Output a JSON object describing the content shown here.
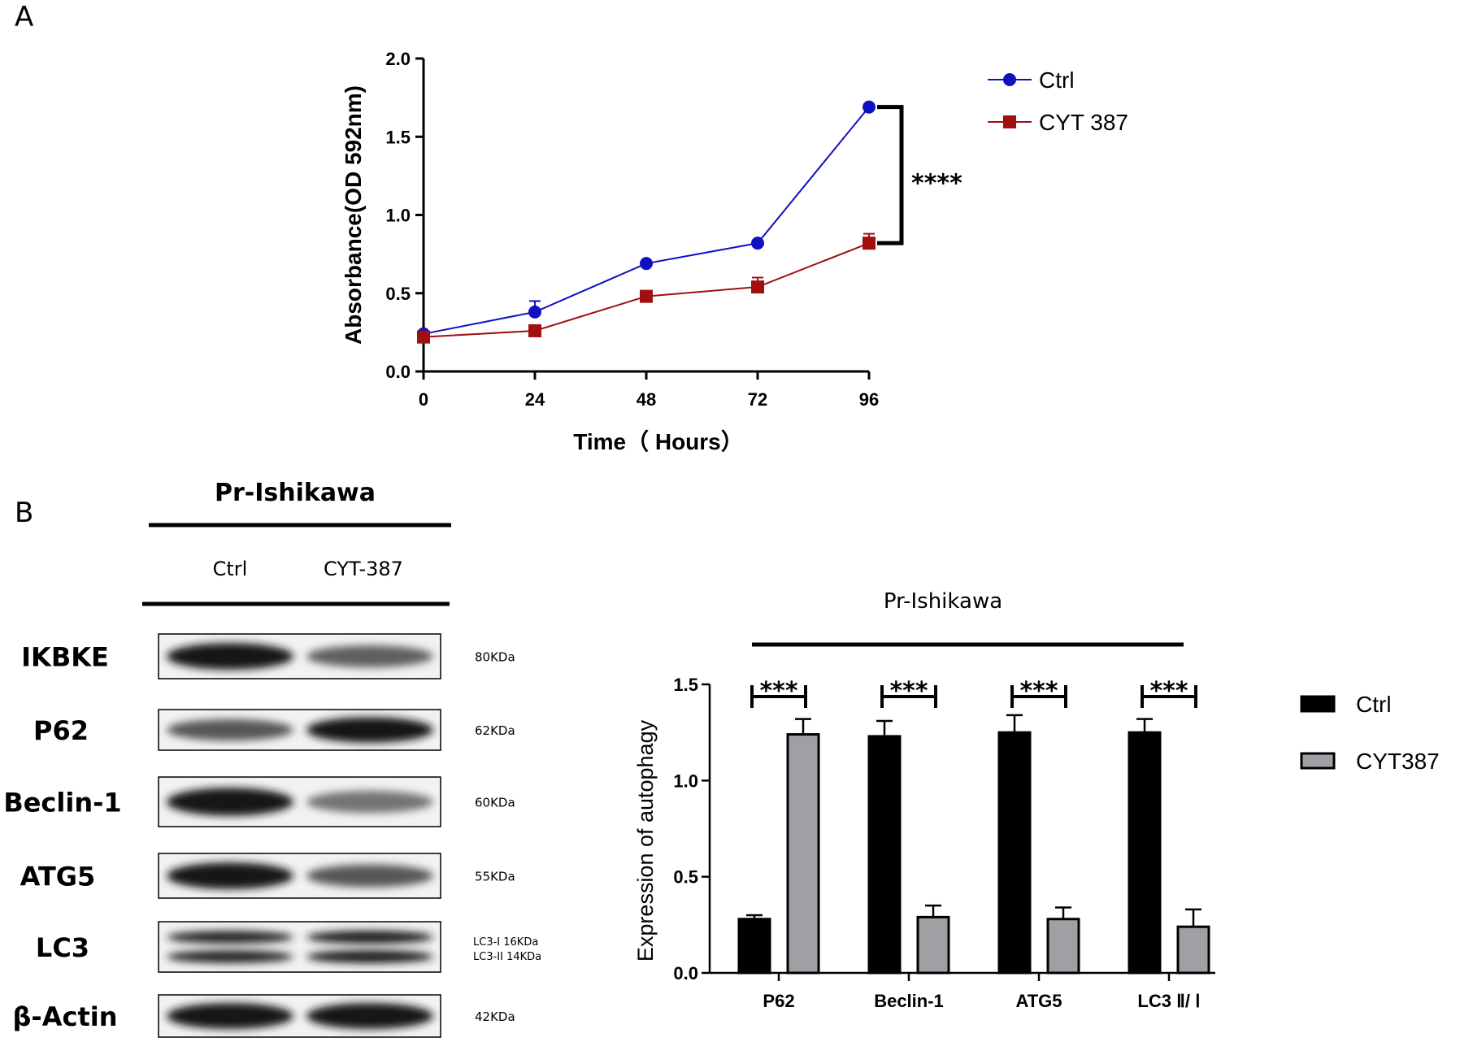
{
  "panel_a": {
    "letter": "A",
    "significance": "****"
  },
  "panel_b": {
    "letter": "B",
    "blot": {
      "title": "Pr-Ishikawa",
      "lanes": [
        "Ctrl",
        "CYT-387"
      ],
      "rows": [
        {
          "protein": "IKBKE",
          "size": "80KDa",
          "intensity": [
            0.95,
            0.55
          ]
        },
        {
          "protein": "P62",
          "size": "62KDa",
          "intensity": [
            0.6,
            0.95
          ]
        },
        {
          "protein": "Beclin-1",
          "size": "60KDa",
          "intensity": [
            0.95,
            0.45
          ]
        },
        {
          "protein": "ATG5",
          "size": "55KDa",
          "intensity": [
            0.95,
            0.6
          ]
        },
        {
          "protein": "LC3",
          "size": "",
          "size_lines": [
            "LC3-I  16KDa",
            "LC3-II 14KDa"
          ],
          "intensity": [
            0.85,
            0.9
          ]
        },
        {
          "protein": "β-Actin",
          "size": "42KDa",
          "intensity": [
            0.95,
            0.95
          ]
        }
      ]
    },
    "group_title": "Pr-Ishikawa",
    "significance": [
      "***",
      "***",
      "***",
      "***"
    ]
  },
  "colors": {
    "ctrl_line": "#1010c0",
    "cyt_line": "#a01010",
    "ctrl_bar": "#000000",
    "cyt_bar": "#a0a0a4"
  },
  "chart_data": [
    {
      "type": "line",
      "title": "",
      "xlabel": "Time（ Hours）",
      "ylabel": "Absorbance(OD 592nm)",
      "x": [
        0,
        24,
        48,
        72,
        96
      ],
      "x_ticks": [
        "0",
        "24",
        "48",
        "72",
        "96"
      ],
      "y_ticks": [
        "0.0",
        "0.5",
        "1.0",
        "1.5",
        "2.0"
      ],
      "ylim": [
        0,
        2.0
      ],
      "xlim": [
        0,
        96
      ],
      "legend_position": "top-right",
      "series": [
        {
          "name": "Ctrl",
          "marker": "circle",
          "values": [
            0.24,
            0.38,
            0.69,
            0.82,
            1.69
          ],
          "errors": [
            0,
            0.07,
            0,
            0,
            0
          ]
        },
        {
          "name": "CYT 387",
          "marker": "square",
          "values": [
            0.22,
            0.26,
            0.48,
            0.54,
            0.82
          ],
          "errors": [
            0,
            0,
            0,
            0.06,
            0.06
          ]
        }
      ]
    },
    {
      "type": "bar",
      "title": "",
      "xlabel": "",
      "ylabel": "Expression of autophagy",
      "categories": [
        "P62",
        "Beclin-1",
        "ATG5",
        "LC3 Ⅱ/ Ⅰ"
      ],
      "y_ticks": [
        "0.0",
        "0.5",
        "1.0",
        "1.5"
      ],
      "ylim": [
        0,
        1.5
      ],
      "legend_position": "right",
      "series": [
        {
          "name": "Ctrl",
          "values": [
            0.28,
            1.23,
            1.25,
            1.25
          ],
          "errors": [
            0.02,
            0.08,
            0.09,
            0.07
          ]
        },
        {
          "name": "CYT387",
          "values": [
            1.24,
            0.29,
            0.28,
            0.24
          ],
          "errors": [
            0.08,
            0.06,
            0.06,
            0.09
          ]
        }
      ]
    }
  ]
}
